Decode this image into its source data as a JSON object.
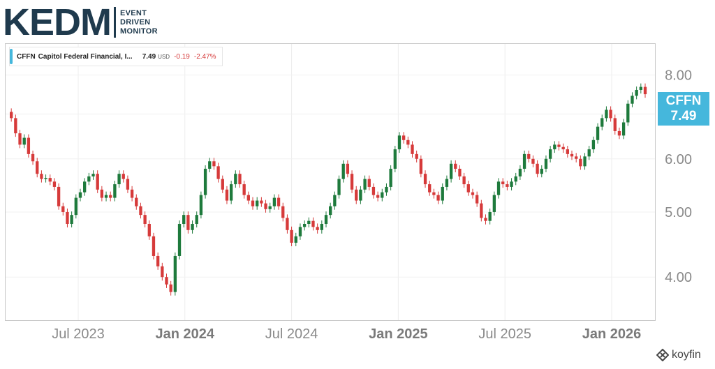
{
  "logo": {
    "main": "KEDM",
    "line1": "EVENT",
    "line2": "DRIVEN",
    "line3": "MONITOR"
  },
  "legend": {
    "ticker": "CFFN",
    "name": "Capitol Federal Financial, I...",
    "price": "7.49",
    "currency": "USD",
    "change": "-0.19",
    "change_pct": "-2.47%",
    "swatch_color": "#45b7dc"
  },
  "price_tag": {
    "ticker": "CFFN",
    "price": "7.49",
    "color": "#45b7dc"
  },
  "brand": {
    "name": "koyfin",
    "icon": "koyfin-logo-icon"
  },
  "colors": {
    "up": "#1e7a3c",
    "down": "#d63a3a"
  },
  "chart_data": {
    "type": "candlestick",
    "scale": "log",
    "ylim": [
      3.45,
      8.9
    ],
    "y_ticks": [
      "8.00",
      "7.00",
      "6.00",
      "5.00",
      "4.00"
    ],
    "x_ticks": [
      {
        "label": "Jul 2023",
        "bold": false
      },
      {
        "label": "Jan 2024",
        "bold": true
      },
      {
        "label": "Jul 2024",
        "bold": false
      },
      {
        "label": "Jan 2025",
        "bold": true
      },
      {
        "label": "Jul 2025",
        "bold": false
      },
      {
        "label": "Jan 2026",
        "bold": true
      }
    ],
    "grid": true,
    "closes": [
      7.05,
      6.9,
      6.55,
      6.3,
      6.45,
      6.1,
      5.95,
      5.7,
      5.6,
      5.62,
      5.55,
      5.45,
      5.1,
      5.0,
      4.8,
      4.95,
      5.25,
      5.35,
      5.55,
      5.65,
      5.7,
      5.4,
      5.25,
      5.3,
      5.25,
      5.5,
      5.7,
      5.6,
      5.4,
      5.25,
      5.1,
      4.95,
      4.8,
      4.6,
      4.3,
      4.15,
      4.0,
      3.9,
      3.8,
      4.3,
      4.8,
      4.95,
      4.7,
      4.8,
      4.95,
      5.3,
      5.8,
      5.95,
      5.85,
      5.6,
      5.4,
      5.2,
      5.5,
      5.7,
      5.5,
      5.3,
      5.2,
      5.1,
      5.2,
      5.15,
      5.05,
      5.1,
      5.25,
      5.1,
      4.9,
      4.7,
      4.5,
      4.6,
      4.75,
      4.8,
      4.85,
      4.75,
      4.7,
      4.8,
      4.95,
      5.1,
      5.3,
      5.6,
      5.9,
      5.7,
      5.4,
      5.2,
      5.4,
      5.6,
      5.45,
      5.3,
      5.25,
      5.35,
      5.45,
      5.8,
      6.2,
      6.5,
      6.4,
      6.3,
      6.1,
      6.0,
      5.7,
      5.5,
      5.35,
      5.3,
      5.2,
      5.45,
      5.6,
      5.9,
      5.8,
      5.65,
      5.5,
      5.35,
      5.3,
      5.15,
      4.9,
      4.85,
      5.0,
      5.3,
      5.55,
      5.5,
      5.45,
      5.55,
      5.65,
      5.8,
      6.1,
      6.0,
      5.9,
      5.7,
      5.8,
      6.0,
      6.2,
      6.3,
      6.25,
      6.2,
      6.1,
      6.05,
      6.0,
      5.85,
      6.05,
      6.2,
      6.4,
      6.7,
      6.9,
      7.1,
      6.9,
      6.6,
      6.5,
      6.8,
      7.25,
      7.45,
      7.6,
      7.68,
      7.49
    ]
  }
}
